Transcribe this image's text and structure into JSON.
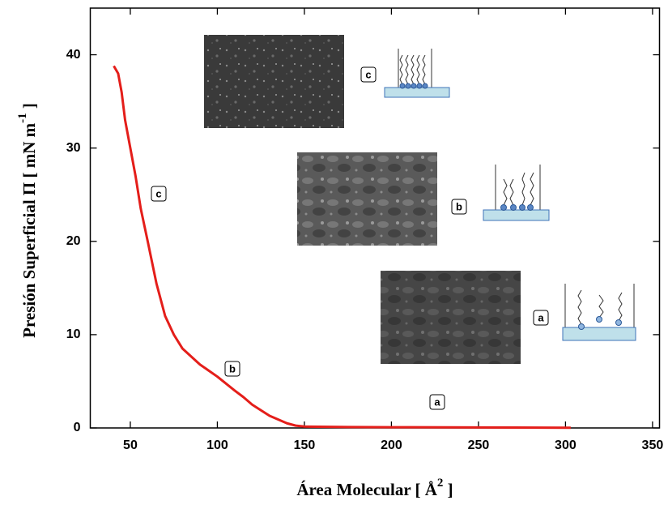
{
  "chart_data": {
    "type": "line",
    "x_label": {
      "text": "Área Molecular [ Å",
      "sup": "2",
      "end": " ]"
    },
    "y_label": {
      "text": "Presión Superficial Π [ mN m",
      "sup": "-1",
      "end": " ]"
    },
    "color": "#e41e1a",
    "x": [
      40.5,
      43,
      45,
      47,
      50,
      53,
      56,
      60,
      65,
      70,
      75,
      80,
      90,
      100,
      110,
      115,
      120,
      130,
      140,
      145,
      150,
      175,
      200,
      250,
      303
    ],
    "values": [
      38.8,
      38,
      36,
      33,
      30,
      27,
      23.5,
      20,
      15.5,
      12,
      10,
      8.5,
      6.8,
      5.5,
      4,
      3.3,
      2.5,
      1.3,
      0.5,
      0.25,
      0.15,
      0.1,
      0.08,
      0.05,
      0.02
    ],
    "xlim": [
      27,
      354
    ],
    "ylim": [
      0,
      45
    ],
    "xticks": [
      50,
      100,
      150,
      200,
      250,
      300,
      350
    ],
    "yticks": [
      0,
      10,
      20,
      30,
      40
    ],
    "annotations": [
      "c",
      "b",
      "a"
    ],
    "inset_labels": [
      "c",
      "b",
      "a"
    ]
  }
}
